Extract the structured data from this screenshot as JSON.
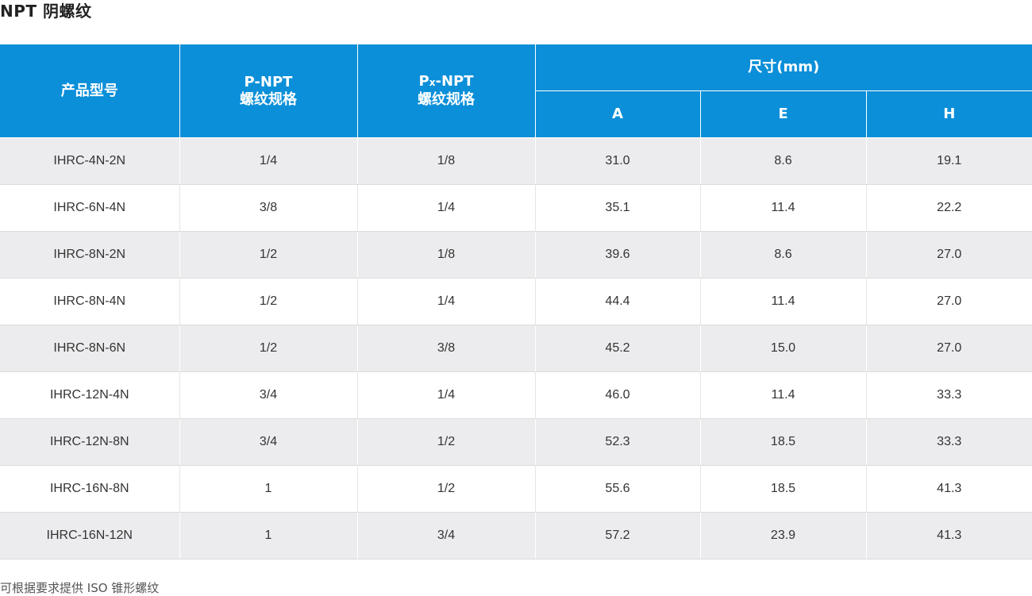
{
  "page": {
    "title": "NPT 阴螺纹",
    "footnote": "可根据要求提供 ISO 锥形螺纹"
  },
  "table": {
    "headers": {
      "model": "产品型号",
      "p_npt_top": "P-NPT",
      "p_npt_bottom": "螺纹规格",
      "px_npt_p": "P",
      "px_npt_sub": "x",
      "px_npt_rest": "-NPT",
      "px_npt_bottom": "螺纹规格",
      "dimensions": "尺寸(mm)",
      "a": "A",
      "e": "E",
      "h": "H"
    },
    "rows": [
      {
        "model": "IHRC-4N-2N",
        "p": "1/4",
        "px": "1/8",
        "a": "31.0",
        "e": "8.6",
        "h": "19.1"
      },
      {
        "model": "IHRC-6N-4N",
        "p": "3/8",
        "px": "1/4",
        "a": "35.1",
        "e": "11.4",
        "h": "22.2"
      },
      {
        "model": "IHRC-8N-2N",
        "p": "1/2",
        "px": "1/8",
        "a": "39.6",
        "e": "8.6",
        "h": "27.0"
      },
      {
        "model": "IHRC-8N-4N",
        "p": "1/2",
        "px": "1/4",
        "a": "44.4",
        "e": "11.4",
        "h": "27.0"
      },
      {
        "model": "IHRC-8N-6N",
        "p": "1/2",
        "px": "3/8",
        "a": "45.2",
        "e": "15.0",
        "h": "27.0"
      },
      {
        "model": "IHRC-12N-4N",
        "p": "3/4",
        "px": "1/4",
        "a": "46.0",
        "e": "11.4",
        "h": "33.3"
      },
      {
        "model": "IHRC-12N-8N",
        "p": "3/4",
        "px": "1/2",
        "a": "52.3",
        "e": "18.5",
        "h": "33.3"
      },
      {
        "model": "IHRC-16N-8N",
        "p": "1",
        "px": "1/2",
        "a": "55.6",
        "e": "18.5",
        "h": "41.3"
      },
      {
        "model": "IHRC-16N-12N",
        "p": "1",
        "px": "3/4",
        "a": "57.2",
        "e": "23.9",
        "h": "41.3"
      }
    ]
  },
  "colors": {
    "header_bg": "#0b8fd9",
    "row_alt_bg": "#ececee"
  }
}
